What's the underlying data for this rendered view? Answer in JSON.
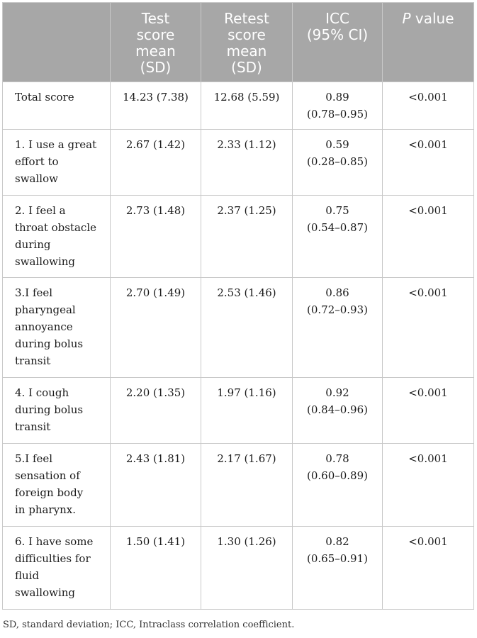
{
  "table": {
    "headers": [
      {
        "id": "item",
        "label": ""
      },
      {
        "id": "test",
        "label": "Test\nscore\nmean\n(SD)"
      },
      {
        "id": "retest",
        "label": "Retest\nscore\nmean\n(SD)"
      },
      {
        "id": "icc",
        "label": "ICC\n(95% CI)"
      },
      {
        "id": "p",
        "label_italic": "P",
        "label_rest": " value"
      }
    ],
    "rows": [
      {
        "item": "Total score",
        "test": "14.23 (7.38)",
        "retest": "12.68 (5.59)",
        "icc": "0.89\n(0.78–0.95)",
        "p": "<0.001"
      },
      {
        "item": "1. I use a great\neffort to\nswallow",
        "test": "2.67 (1.42)",
        "retest": "2.33 (1.12)",
        "icc": "0.59\n(0.28–0.85)",
        "p": "<0.001"
      },
      {
        "item": "2. I feel a\nthroat obstacle\nduring\nswallowing",
        "test": "2.73 (1.48)",
        "retest": "2.37 (1.25)",
        "icc": "0.75\n(0.54–0.87)",
        "p": "<0.001"
      },
      {
        "item": "3.I feel\npharyngeal\nannoyance\nduring bolus\ntransit",
        "test": "2.70 (1.49)",
        "retest": "2.53 (1.46)",
        "icc": "0.86\n(0.72–0.93)",
        "p": "<0.001"
      },
      {
        "item": "4. I cough\nduring bolus\ntransit",
        "test": "2.20 (1.35)",
        "retest": "1.97 (1.16)",
        "icc": "0.92\n(0.84–0.96)",
        "p": "<0.001"
      },
      {
        "item": "5.I feel\nsensation of\nforeign body\nin pharynx.",
        "test": "2.43 (1.81)",
        "retest": "2.17 (1.67)",
        "icc": "0.78\n(0.60–0.89)",
        "p": "<0.001"
      },
      {
        "item": "6. I have some\ndifficulties for\nfluid\nswallowing",
        "test": "1.50 (1.41)",
        "retest": "1.30 (1.26)",
        "icc": "0.82\n(0.65–0.91)",
        "p": "<0.001"
      }
    ]
  },
  "footnote": "SD, standard deviation; ICC, Intraclass correlation coefficient."
}
